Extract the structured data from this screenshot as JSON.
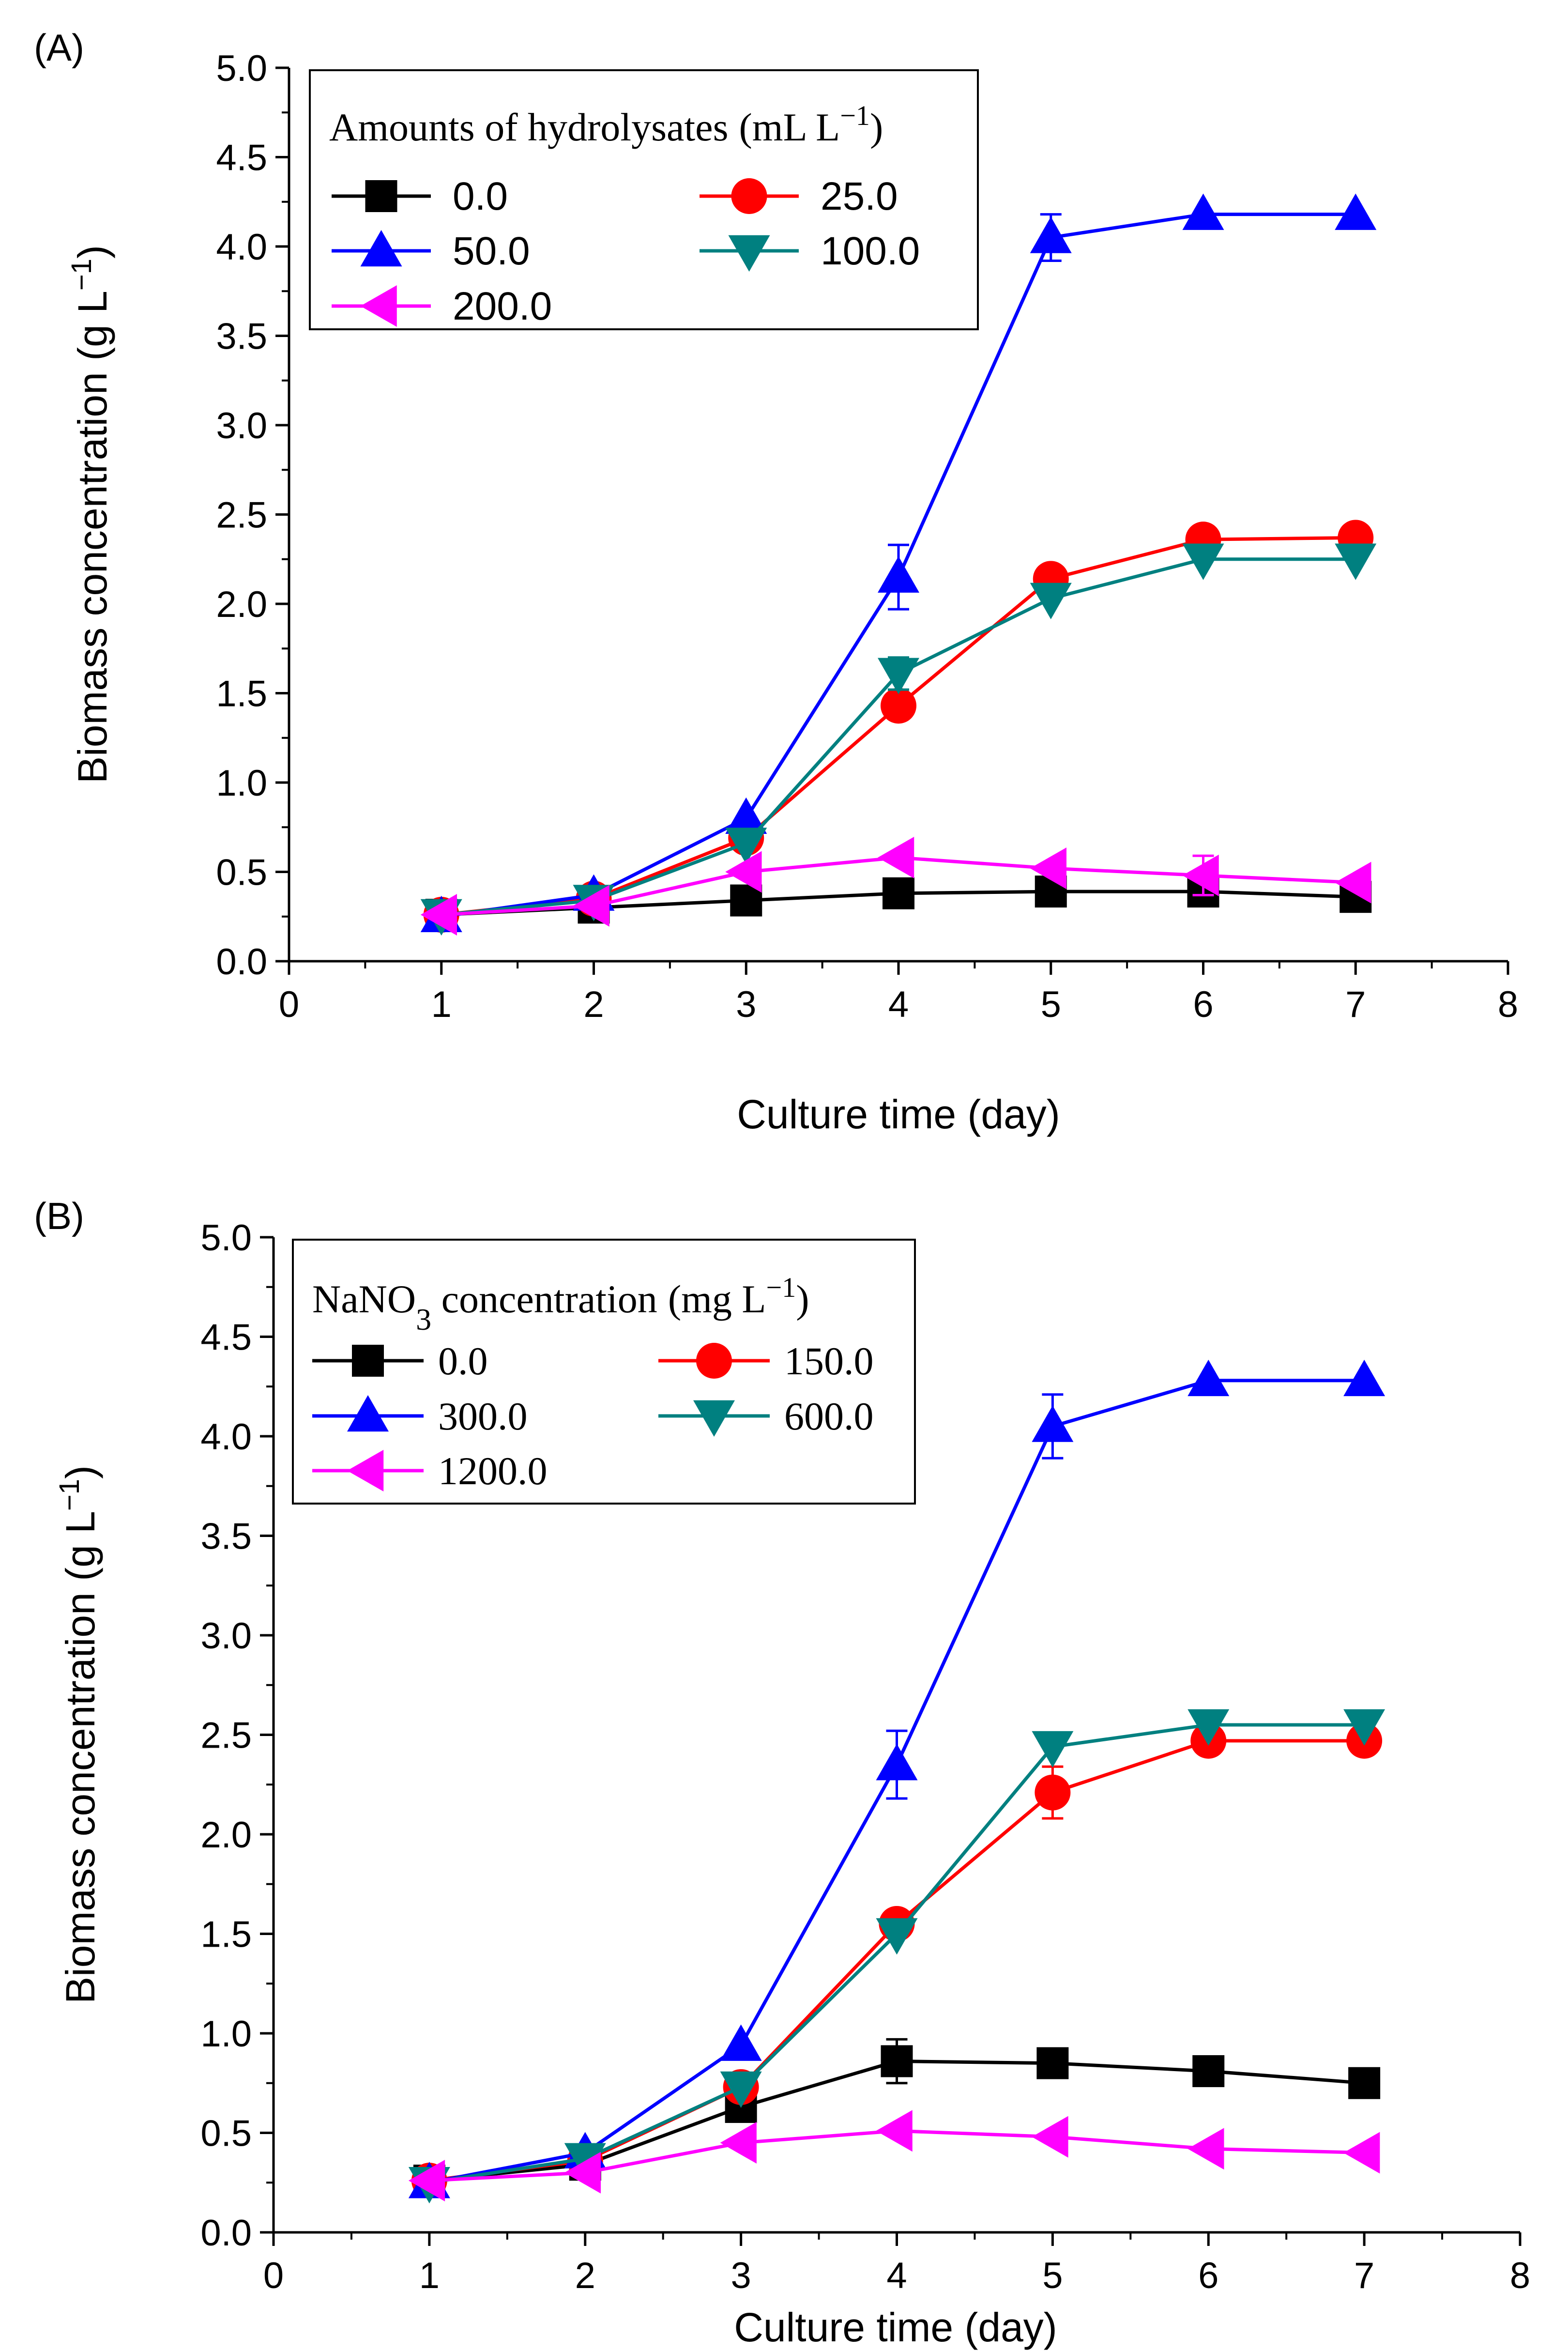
{
  "chart_data": [
    {
      "panel_label": "(A)",
      "type": "line",
      "xlabel": "Culture time (day)",
      "ylabel": "Biomass concentration (g L",
      "ylabel_sup": "−1",
      "ylabel_close": ")",
      "xlim": [
        0,
        8
      ],
      "ylim": [
        0,
        5
      ],
      "x_ticks": [
        "0",
        "1",
        "2",
        "3",
        "4",
        "5",
        "6",
        "7",
        "8"
      ],
      "y_ticks": [
        "0.0",
        "0.5",
        "1.0",
        "1.5",
        "2.0",
        "2.5",
        "3.0",
        "3.5",
        "4.0",
        "4.5",
        "5.0"
      ],
      "legend": {
        "title": "Amounts of hydrolysates",
        "title_unit": "(mL L",
        "title_unit_sup": "−1",
        "title_unit_close": ")",
        "placement": "top-left"
      },
      "x": [
        1,
        2,
        3,
        4,
        5,
        6,
        7
      ],
      "series": [
        {
          "name": "0.0",
          "color": "#000000",
          "marker": "square",
          "values": [
            0.26,
            0.3,
            0.34,
            0.38,
            0.39,
            0.39,
            0.36
          ],
          "errors": [
            0.02,
            0.02,
            0.02,
            0.02,
            0.02,
            0.02,
            0.02
          ]
        },
        {
          "name": "25.0",
          "color": "#ff0000",
          "marker": "circle",
          "values": [
            0.26,
            0.35,
            0.69,
            1.43,
            2.14,
            2.36,
            2.37
          ],
          "errors": [
            0.02,
            0.02,
            0.03,
            0.04,
            0.05,
            0.03,
            0.02
          ]
        },
        {
          "name": "50.0",
          "color": "#0000ff",
          "marker": "triangle-up",
          "values": [
            0.25,
            0.37,
            0.8,
            2.15,
            4.05,
            4.18,
            4.18
          ],
          "errors": [
            0.02,
            0.02,
            0.04,
            0.18,
            0.13,
            0.02,
            0.02
          ]
        },
        {
          "name": "100.0",
          "color": "#008080",
          "marker": "triangle-down",
          "values": [
            0.26,
            0.34,
            0.66,
            1.61,
            2.03,
            2.25,
            2.25
          ],
          "errors": [
            0.02,
            0.02,
            0.03,
            0.09,
            0.04,
            0.02,
            0.02
          ]
        },
        {
          "name": "200.0",
          "color": "#ff00ff",
          "marker": "triangle-left",
          "values": [
            0.26,
            0.31,
            0.5,
            0.58,
            0.52,
            0.48,
            0.44
          ],
          "errors": [
            0.02,
            0.02,
            0.03,
            0.03,
            0.03,
            0.11,
            0.02
          ]
        }
      ]
    },
    {
      "panel_label": "(B)",
      "type": "line",
      "xlabel": "Culture time (day)",
      "ylabel": "Biomass concentration (g L",
      "ylabel_sup": "−1",
      "ylabel_close": ")",
      "xlim": [
        0,
        8
      ],
      "ylim": [
        0,
        5
      ],
      "x_ticks": [
        "0",
        "1",
        "2",
        "3",
        "4",
        "5",
        "6",
        "7",
        "8"
      ],
      "y_ticks": [
        "0.0",
        "0.5",
        "1.0",
        "1.5",
        "2.0",
        "2.5",
        "3.0",
        "3.5",
        "4.0",
        "4.5",
        "5.0"
      ],
      "legend": {
        "title": "NaNO",
        "title_sub": "3",
        "title_rest": " concentration",
        "title_unit": "(mg L",
        "title_unit_sup": "−1",
        "title_unit_close": ")",
        "placement": "top-left"
      },
      "x": [
        1,
        2,
        3,
        4,
        5,
        6,
        7
      ],
      "series": [
        {
          "name": "0.0",
          "color": "#000000",
          "marker": "square",
          "values": [
            0.26,
            0.34,
            0.63,
            0.86,
            0.85,
            0.81,
            0.75
          ],
          "errors": [
            0.02,
            0.02,
            0.03,
            0.11,
            0.03,
            0.02,
            0.02
          ]
        },
        {
          "name": "150.0",
          "color": "#ff0000",
          "marker": "circle",
          "values": [
            0.26,
            0.36,
            0.73,
            1.55,
            2.21,
            2.47,
            2.47
          ],
          "errors": [
            0.02,
            0.02,
            0.03,
            0.03,
            0.13,
            0.02,
            0.02
          ]
        },
        {
          "name": "300.0",
          "color": "#0000ff",
          "marker": "triangle-up",
          "values": [
            0.25,
            0.4,
            0.94,
            2.35,
            4.05,
            4.28,
            4.28
          ],
          "errors": [
            0.02,
            0.02,
            0.03,
            0.17,
            0.16,
            0.02,
            0.02
          ]
        },
        {
          "name": "600.0",
          "color": "#008080",
          "marker": "triangle-down",
          "values": [
            0.25,
            0.37,
            0.73,
            1.5,
            2.44,
            2.55,
            2.55
          ],
          "errors": [
            0.02,
            0.02,
            0.03,
            0.03,
            0.03,
            0.02,
            0.02
          ]
        },
        {
          "name": "1200.0",
          "color": "#ff00ff",
          "marker": "triangle-left",
          "values": [
            0.26,
            0.3,
            0.45,
            0.51,
            0.48,
            0.42,
            0.4
          ],
          "errors": [
            0.02,
            0.02,
            0.03,
            0.02,
            0.02,
            0.02,
            0.02
          ]
        }
      ]
    }
  ]
}
